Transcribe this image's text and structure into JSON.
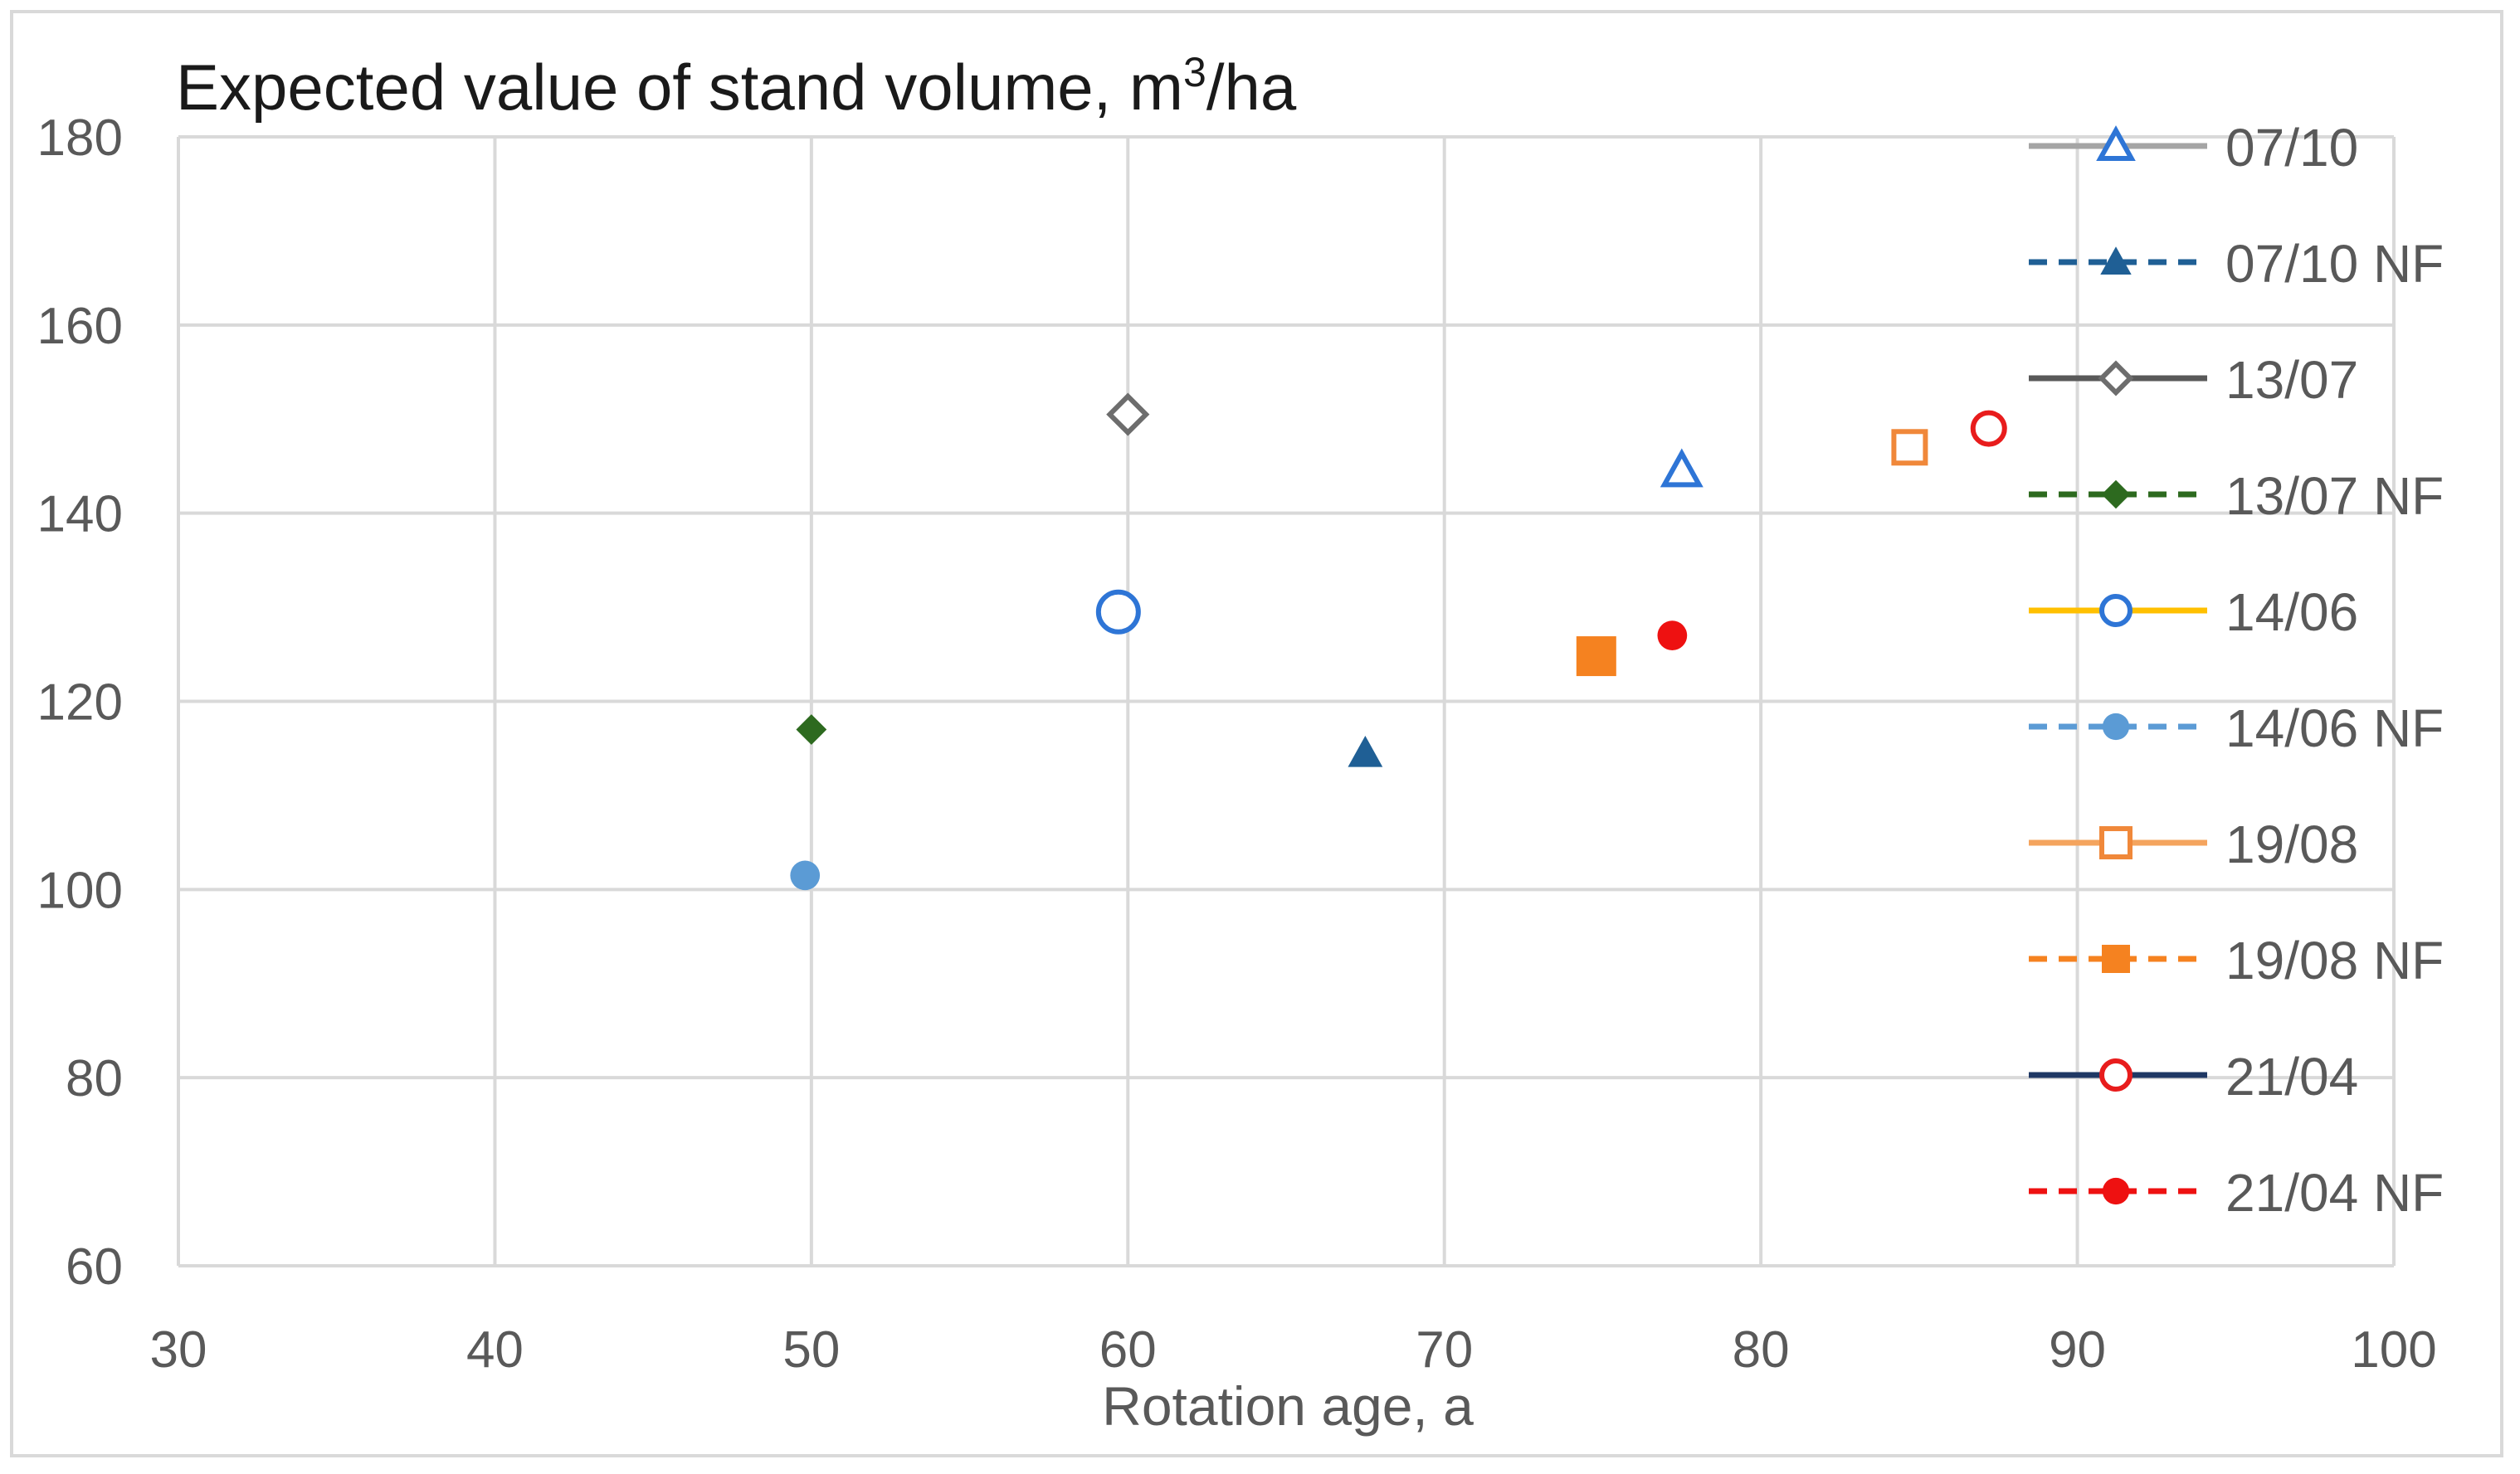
{
  "chart_data": {
    "type": "scatter",
    "title_main": "Expected value of stand volume,  m",
    "title_sup": "3",
    "title_tail": "/ha",
    "xlabel": "Rotation age, a",
    "ylabel": "",
    "xlim": [
      30,
      100
    ],
    "ylim": [
      60,
      180
    ],
    "xticks": [
      30,
      40,
      50,
      60,
      70,
      80,
      90,
      100
    ],
    "yticks": [
      60,
      80,
      100,
      120,
      140,
      160,
      180
    ],
    "grid": true,
    "legend_position": "right",
    "series": [
      {
        "name": "07/10",
        "x": 77.5,
        "y": 144.5,
        "marker": "triangle",
        "filled": false,
        "marker_color": "#2e75d6",
        "line_color": "#a5a5a5",
        "dashed": false
      },
      {
        "name": "07/10 NF",
        "x": 67.5,
        "y": 114.5,
        "marker": "triangle",
        "filled": true,
        "marker_color": "#1f5f95",
        "line_color": "#1f5f95",
        "dashed": true
      },
      {
        "name": "13/07",
        "x": 60.0,
        "y": 150.5,
        "marker": "diamond",
        "filled": false,
        "marker_color": "#6d6d6d",
        "line_color": "#595959",
        "dashed": false
      },
      {
        "name": "13/07 NF",
        "x": 50.0,
        "y": 117.0,
        "marker": "diamond",
        "filled": true,
        "marker_color": "#2d6a1f",
        "line_color": "#2d6a1f",
        "dashed": true
      },
      {
        "name": "14/06",
        "x": 59.7,
        "y": 129.5,
        "marker": "circle",
        "filled": false,
        "marker_color": "#2e75d6",
        "line_color": "#ffc000",
        "dashed": false
      },
      {
        "name": "14/06 NF",
        "x": 49.8,
        "y": 101.5,
        "marker": "circle",
        "filled": true,
        "marker_color": "#5b9bd5",
        "line_color": "#5b9bd5",
        "dashed": true
      },
      {
        "name": "19/08",
        "x": 84.7,
        "y": 147.0,
        "marker": "square",
        "filled": false,
        "marker_color": "#f0883a",
        "line_color": "#f4a45e",
        "dashed": false
      },
      {
        "name": "19/08 NF",
        "x": 74.8,
        "y": 124.8,
        "marker": "square",
        "filled": true,
        "marker_color": "#f58220",
        "line_color": "#f58220",
        "dashed": true
      },
      {
        "name": "21/04",
        "x": 87.2,
        "y": 149.0,
        "marker": "circle",
        "filled": false,
        "marker_color": "#e81c1c",
        "line_color": "#1f3864",
        "dashed": false
      },
      {
        "name": "21/04 NF",
        "x": 77.2,
        "y": 127.0,
        "marker": "circle",
        "filled": true,
        "marker_color": "#ee1111",
        "line_color": "#ee1111",
        "dashed": true
      }
    ]
  }
}
